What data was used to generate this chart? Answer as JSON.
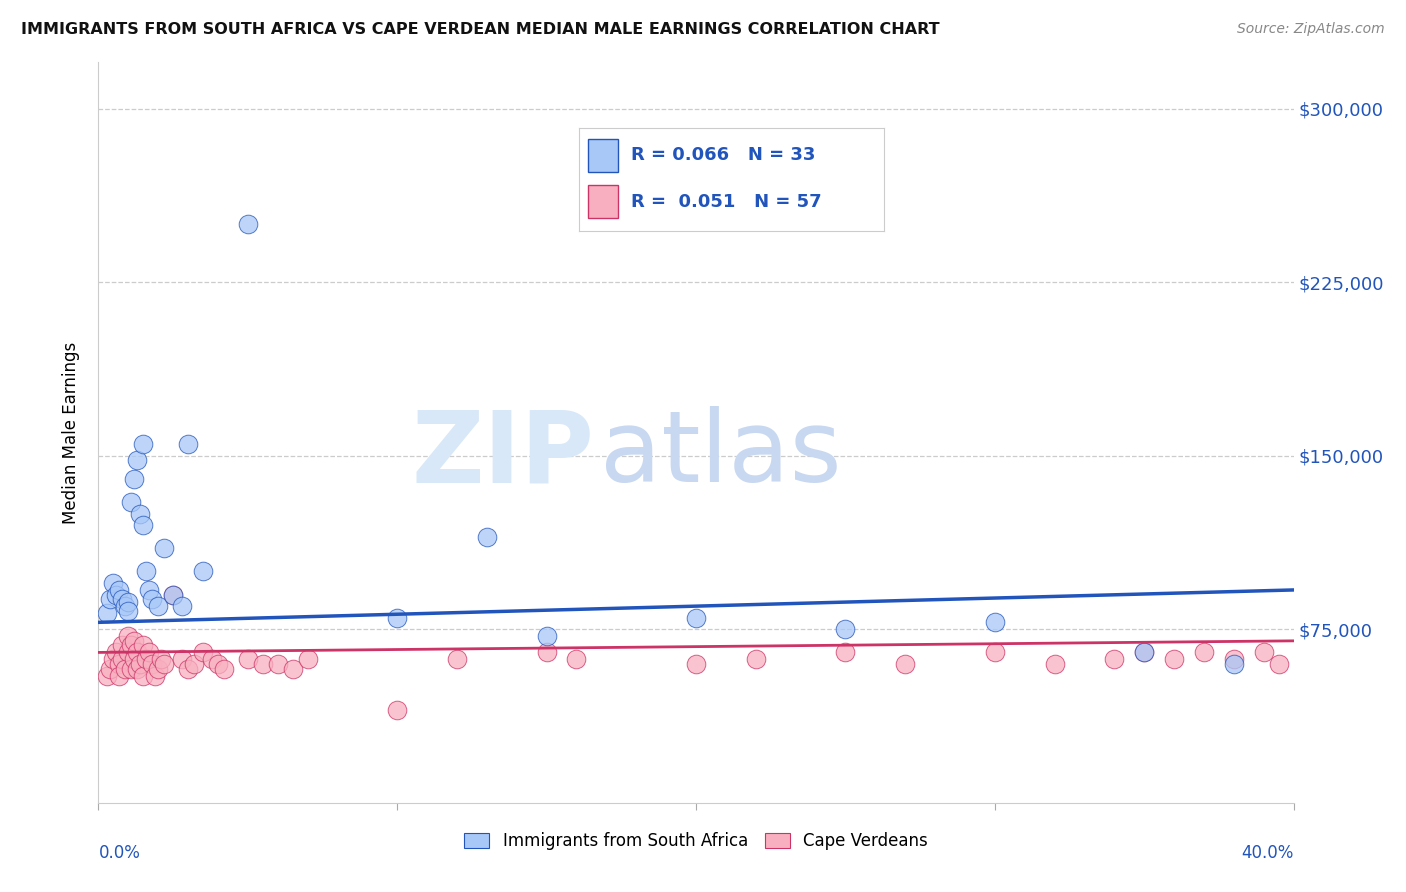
{
  "title": "IMMIGRANTS FROM SOUTH AFRICA VS CAPE VERDEAN MEDIAN MALE EARNINGS CORRELATION CHART",
  "source": "Source: ZipAtlas.com",
  "ylabel": "Median Male Earnings",
  "yticks": [
    0,
    75000,
    150000,
    225000,
    300000
  ],
  "ytick_labels": [
    "",
    "$75,000",
    "$150,000",
    "$225,000",
    "$300,000"
  ],
  "ylim": [
    0,
    320000
  ],
  "xlim": [
    0.0,
    0.4
  ],
  "color_blue": "#A8C8F8",
  "color_pink": "#F8B0C0",
  "color_blue_line": "#2255BB",
  "color_pink_line": "#CC3366",
  "watermark_zip": "ZIP",
  "watermark_atlas": "atlas",
  "blue_x": [
    0.003,
    0.004,
    0.005,
    0.006,
    0.007,
    0.008,
    0.009,
    0.01,
    0.01,
    0.011,
    0.012,
    0.013,
    0.014,
    0.015,
    0.015,
    0.016,
    0.017,
    0.018,
    0.02,
    0.022,
    0.025,
    0.028,
    0.03,
    0.035,
    0.05,
    0.1,
    0.15,
    0.2,
    0.25,
    0.3,
    0.35,
    0.38,
    0.13
  ],
  "blue_y": [
    82000,
    88000,
    95000,
    90000,
    92000,
    88000,
    85000,
    87000,
    83000,
    130000,
    140000,
    148000,
    125000,
    155000,
    120000,
    100000,
    92000,
    88000,
    85000,
    110000,
    90000,
    85000,
    155000,
    100000,
    250000,
    80000,
    72000,
    80000,
    75000,
    78000,
    65000,
    60000,
    115000
  ],
  "pink_x": [
    0.003,
    0.004,
    0.005,
    0.006,
    0.007,
    0.007,
    0.008,
    0.008,
    0.009,
    0.01,
    0.01,
    0.011,
    0.011,
    0.012,
    0.012,
    0.013,
    0.013,
    0.014,
    0.015,
    0.015,
    0.016,
    0.017,
    0.018,
    0.019,
    0.02,
    0.021,
    0.022,
    0.025,
    0.028,
    0.03,
    0.032,
    0.035,
    0.038,
    0.04,
    0.042,
    0.05,
    0.055,
    0.06,
    0.065,
    0.07,
    0.1,
    0.12,
    0.15,
    0.16,
    0.2,
    0.22,
    0.25,
    0.27,
    0.3,
    0.32,
    0.34,
    0.35,
    0.36,
    0.37,
    0.38,
    0.39,
    0.395
  ],
  "pink_y": [
    55000,
    58000,
    62000,
    65000,
    60000,
    55000,
    68000,
    62000,
    58000,
    72000,
    65000,
    68000,
    58000,
    70000,
    62000,
    65000,
    58000,
    60000,
    68000,
    55000,
    62000,
    65000,
    60000,
    55000,
    58000,
    62000,
    60000,
    90000,
    62000,
    58000,
    60000,
    65000,
    62000,
    60000,
    58000,
    62000,
    60000,
    60000,
    58000,
    62000,
    40000,
    62000,
    65000,
    62000,
    60000,
    62000,
    65000,
    60000,
    65000,
    60000,
    62000,
    65000,
    62000,
    65000,
    62000,
    65000,
    60000
  ]
}
